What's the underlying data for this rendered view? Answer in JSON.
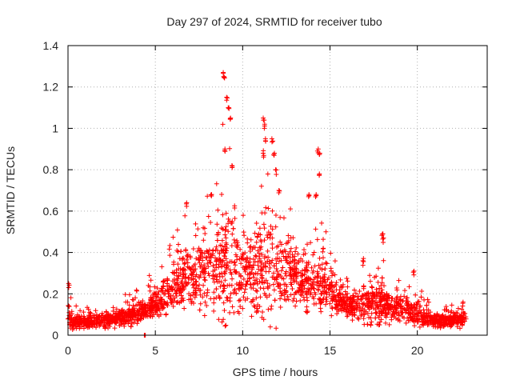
{
  "chart_data": {
    "type": "scatter",
    "title": "Day 297 of 2024, SRMTID for receiver tubo",
    "xlabel": "GPS time / hours",
    "ylabel": "SRMTID / TECUs",
    "xlim": [
      0,
      24
    ],
    "ylim": [
      0,
      1.4
    ],
    "x_ticks": [
      0,
      5,
      10,
      15,
      20
    ],
    "y_ticks": [
      0,
      0.2,
      0.4,
      0.6,
      0.8,
      1,
      1.2,
      1.4
    ],
    "x_tick_labels": [
      "0",
      "5",
      "10",
      "15",
      "20"
    ],
    "y_tick_labels": [
      "0",
      "0.2",
      "0.4",
      "0.6",
      "0.8",
      "1",
      "1.2",
      "1.4"
    ],
    "grid": true,
    "marker": "+",
    "series": [
      {
        "name": "SRMTID",
        "color": "#ff0000",
        "envelope": {
          "x": [
            0,
            0.3,
            1,
            2,
            3,
            4,
            4.5,
            5,
            5.5,
            6,
            6.5,
            7,
            7.5,
            8,
            8.5,
            9,
            9.5,
            10,
            10.5,
            11,
            11.5,
            12,
            12.5,
            13,
            13.5,
            14,
            14.5,
            15,
            15.5,
            16,
            16.5,
            17,
            17.5,
            18,
            18.5,
            19,
            19.5,
            20,
            20.5,
            21,
            21.5,
            22,
            22.8
          ],
          "typical": [
            0.1,
            0.06,
            0.06,
            0.07,
            0.08,
            0.11,
            0.13,
            0.15,
            0.18,
            0.22,
            0.26,
            0.3,
            0.3,
            0.32,
            0.34,
            0.36,
            0.35,
            0.33,
            0.3,
            0.32,
            0.33,
            0.32,
            0.3,
            0.28,
            0.26,
            0.25,
            0.24,
            0.22,
            0.18,
            0.15,
            0.14,
            0.14,
            0.15,
            0.15,
            0.14,
            0.13,
            0.12,
            0.11,
            0.08,
            0.07,
            0.07,
            0.07,
            0.07
          ],
          "spread": [
            0.06,
            0.03,
            0.03,
            0.03,
            0.04,
            0.05,
            0.05,
            0.06,
            0.07,
            0.09,
            0.12,
            0.14,
            0.14,
            0.15,
            0.2,
            0.28,
            0.22,
            0.16,
            0.15,
            0.22,
            0.25,
            0.2,
            0.15,
            0.12,
            0.1,
            0.12,
            0.12,
            0.09,
            0.07,
            0.06,
            0.08,
            0.08,
            0.1,
            0.1,
            0.07,
            0.06,
            0.06,
            0.06,
            0.04,
            0.03,
            0.03,
            0.03,
            0.03
          ]
        },
        "peaks": [
          {
            "x": 0.05,
            "y": 0.25
          },
          {
            "x": 4.4,
            "y": 0.0
          },
          {
            "x": 6.8,
            "y": 0.64
          },
          {
            "x": 8.2,
            "y": 0.68
          },
          {
            "x": 8.9,
            "y": 1.27
          },
          {
            "x": 8.95,
            "y": 1.25
          },
          {
            "x": 9.1,
            "y": 1.15
          },
          {
            "x": 9.2,
            "y": 1.1
          },
          {
            "x": 9.3,
            "y": 1.05
          },
          {
            "x": 9.0,
            "y": 0.9
          },
          {
            "x": 9.4,
            "y": 0.82
          },
          {
            "x": 11.2,
            "y": 1.05
          },
          {
            "x": 11.25,
            "y": 1.02
          },
          {
            "x": 11.3,
            "y": 0.95
          },
          {
            "x": 11.2,
            "y": 0.88
          },
          {
            "x": 11.7,
            "y": 0.95
          },
          {
            "x": 11.8,
            "y": 0.88
          },
          {
            "x": 11.9,
            "y": 0.8
          },
          {
            "x": 12.1,
            "y": 0.7
          },
          {
            "x": 13.8,
            "y": 0.68
          },
          {
            "x": 14.3,
            "y": 0.9
          },
          {
            "x": 14.4,
            "y": 0.88
          },
          {
            "x": 14.4,
            "y": 0.78
          },
          {
            "x": 14.2,
            "y": 0.68
          },
          {
            "x": 14.6,
            "y": 0.42
          },
          {
            "x": 16.9,
            "y": 0.36
          },
          {
            "x": 18.0,
            "y": 0.49
          },
          {
            "x": 18.05,
            "y": 0.47
          },
          {
            "x": 19.8,
            "y": 0.31
          },
          {
            "x": 22.6,
            "y": 0.16
          }
        ]
      }
    ]
  }
}
